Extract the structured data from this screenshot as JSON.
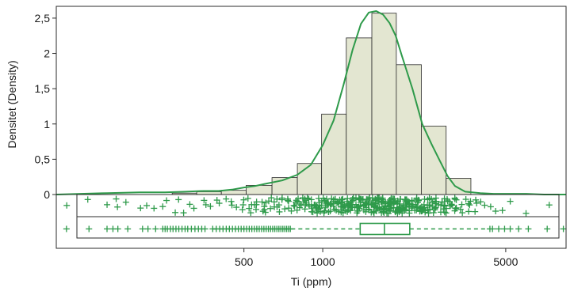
{
  "chart_data": {
    "type": "bar",
    "xlabel": "Ti (ppm)",
    "ylabel": "Densitet (Density)",
    "x_scale": "log",
    "xlim": [
      96,
      8500
    ],
    "ylim": [
      0,
      2.6
    ],
    "x_ticks": [
      500,
      1000,
      5000
    ],
    "x_tick_labels": [
      "500",
      "1000",
      "5000"
    ],
    "y_ticks": [
      0,
      0.5,
      1,
      1.5,
      2,
      2.5
    ],
    "y_tick_labels": [
      "0",
      "0,5",
      "1",
      "1,5",
      "2",
      "2,5"
    ],
    "histogram": {
      "bins": [
        {
          "from": 266,
          "to": 330,
          "density": 0.02
        },
        {
          "from": 330,
          "to": 410,
          "density": 0.04
        },
        {
          "from": 410,
          "to": 510,
          "density": 0.06
        },
        {
          "from": 510,
          "to": 640,
          "density": 0.13
        },
        {
          "from": 640,
          "to": 800,
          "density": 0.24
        },
        {
          "from": 800,
          "to": 990,
          "density": 0.44
        },
        {
          "from": 990,
          "to": 1230,
          "density": 1.14
        },
        {
          "from": 1230,
          "to": 1540,
          "density": 2.22
        },
        {
          "from": 1540,
          "to": 1910,
          "density": 2.57
        },
        {
          "from": 1910,
          "to": 2380,
          "density": 1.84
        },
        {
          "from": 2380,
          "to": 2960,
          "density": 0.97
        },
        {
          "from": 2960,
          "to": 3680,
          "density": 0.23
        }
      ]
    },
    "density_curve": {
      "x": [
        90,
        150,
        200,
        250,
        300,
        350,
        400,
        450,
        500,
        550,
        600,
        700,
        800,
        900,
        1000,
        1100,
        1200,
        1300,
        1400,
        1500,
        1600,
        1700,
        1800,
        1900,
        2000,
        2200,
        2400,
        2600,
        2800,
        3000,
        3200,
        3500,
        4000,
        4500,
        5000,
        6000,
        7000,
        8500
      ],
      "y": [
        0,
        0.02,
        0.03,
        0.03,
        0.04,
        0.05,
        0.05,
        0.07,
        0.1,
        0.12,
        0.15,
        0.2,
        0.28,
        0.42,
        0.7,
        1.05,
        1.55,
        2.05,
        2.42,
        2.58,
        2.6,
        2.55,
        2.43,
        2.25,
        1.98,
        1.5,
        1.0,
        0.72,
        0.48,
        0.26,
        0.12,
        0.04,
        0.02,
        0.01,
        0.01,
        0.01,
        0.0,
        0.0
      ]
    },
    "boxplot": {
      "q1": 1390,
      "median": 1720,
      "q3": 2150,
      "whisker_low": 380,
      "whisker_high": 4300,
      "outliers": [
        105,
        128,
        150,
        158,
        165,
        180,
        205,
        215,
        230,
        245,
        250,
        255,
        262,
        268,
        275,
        282,
        290,
        298,
        305,
        315,
        325,
        335,
        345,
        355,
        4350,
        4450,
        4700,
        4950,
        5200,
        5600,
        6100,
        7200,
        8300
      ]
    },
    "observations": [
      105,
      128,
      150,
      160,
      165,
      175,
      205,
      215,
      230,
      245,
      258,
      268,
      282,
      298,
      310,
      325,
      345,
      362,
      375,
      390,
      405,
      420,
      440,
      455,
      470,
      490,
      505,
      520,
      535,
      550,
      565,
      580,
      595,
      610,
      625,
      640,
      655,
      670,
      690,
      710,
      730,
      750,
      770,
      790,
      810,
      830,
      850,
      870,
      890,
      910,
      930,
      950,
      970,
      990,
      1010,
      1030,
      1050,
      1070,
      1090,
      1110,
      1130,
      1150,
      1170,
      1190,
      1210,
      1230,
      1250,
      1270,
      1290,
      1310,
      1330,
      1350,
      1370,
      1390,
      1410,
      1430,
      1450,
      1470,
      1490,
      1510,
      1530,
      1550,
      1570,
      1590,
      1610,
      1630,
      1650,
      1670,
      1690,
      1710,
      1730,
      1750,
      1770,
      1790,
      1810,
      1830,
      1850,
      1870,
      1890,
      1910,
      1940,
      1970,
      2000,
      2030,
      2060,
      2090,
      2120,
      2150,
      2180,
      2220,
      2260,
      2300,
      2340,
      2380,
      2420,
      2470,
      2520,
      2570,
      2620,
      2680,
      2740,
      2800,
      2870,
      2940,
      3020,
      3100,
      3180,
      3270,
      3360,
      3460,
      3560,
      3680,
      3800,
      3950,
      4100,
      4300,
      4500,
      4800,
      5200,
      6100,
      7200
    ]
  },
  "colors": {
    "bar_fill": "#e3e6d1",
    "bar_stroke": "#2b2b2b",
    "curve": "#2e9a4a",
    "marker": "#2e9a4a",
    "frame": "#2b2b2b"
  }
}
